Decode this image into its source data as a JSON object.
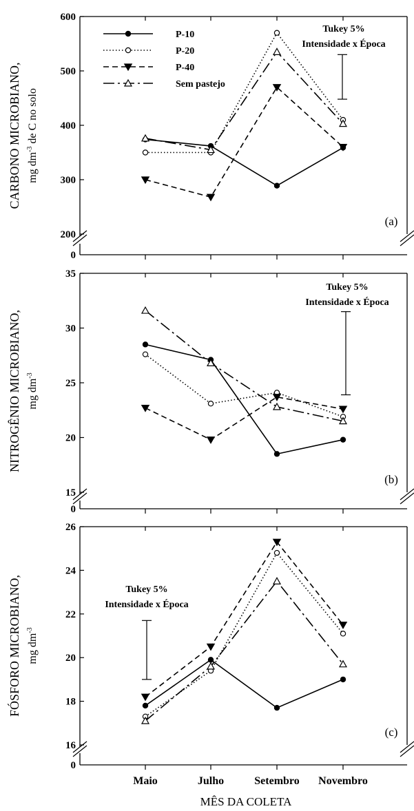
{
  "xlabel": "MÊS DA COLETA",
  "months": [
    "Maio",
    "Julho",
    "Setembro",
    "Novembro"
  ],
  "legend": [
    "P-10",
    "P-20",
    "P-40",
    "Sem pastejo"
  ],
  "tukey": {
    "line1": "Tukey 5%",
    "line2": "Intensidade x Época"
  },
  "chart_data": [
    {
      "type": "line",
      "panel": "(a)",
      "ylabel_line1": "CARBONO MICROBIANO,",
      "ylabel_line2_pre": "mg dm",
      "ylabel_line2_sup": "-3",
      "ylabel_line2_post": " de C no solo",
      "categories": [
        "Maio",
        "Julho",
        "Setembro",
        "Novembro"
      ],
      "ylim": [
        200,
        600
      ],
      "yticks": [
        200,
        300,
        400,
        500,
        600
      ],
      "axis_break": true,
      "legend_position": "top-left",
      "series": [
        {
          "name": "P-10",
          "values": [
            374,
            362,
            289,
            359
          ]
        },
        {
          "name": "P-20",
          "values": [
            350,
            350,
            570,
            410
          ]
        },
        {
          "name": "P-40",
          "values": [
            300,
            268,
            470,
            360
          ]
        },
        {
          "name": "Sem pastejo",
          "values": [
            376,
            355,
            535,
            403
          ]
        }
      ],
      "tukey_bar": [
        448,
        530
      ]
    },
    {
      "type": "line",
      "panel": "(b)",
      "ylabel_line1": "NITROGÊNIO MICROBIANO,",
      "ylabel_line2_pre": "mg dm",
      "ylabel_line2_sup": "-3",
      "ylabel_line2_post": "",
      "categories": [
        "Maio",
        "Julho",
        "Setembro",
        "Novembro"
      ],
      "ylim": [
        15,
        35
      ],
      "yticks": [
        15,
        20,
        25,
        30,
        35
      ],
      "axis_break": true,
      "series": [
        {
          "name": "P-10",
          "values": [
            28.5,
            27.1,
            18.5,
            19.8
          ]
        },
        {
          "name": "P-20",
          "values": [
            27.6,
            23.1,
            24.1,
            21.9
          ]
        },
        {
          "name": "P-40",
          "values": [
            22.7,
            19.8,
            23.7,
            22.6
          ]
        },
        {
          "name": "Sem pastejo",
          "values": [
            31.6,
            26.8,
            22.8,
            21.5
          ]
        }
      ],
      "tukey_bar": [
        23.9,
        31.5
      ]
    },
    {
      "type": "line",
      "panel": "(c)",
      "ylabel_line1": "FÓSFORO MICROBIANO,",
      "ylabel_line2_pre": "mg dm",
      "ylabel_line2_sup": "-3",
      "ylabel_line2_post": "",
      "categories": [
        "Maio",
        "Julho",
        "Setembro",
        "Novembro"
      ],
      "ylim": [
        16,
        26
      ],
      "yticks": [
        16,
        18,
        20,
        22,
        24,
        26
      ],
      "axis_break": true,
      "series": [
        {
          "name": "P-10",
          "values": [
            17.8,
            19.9,
            17.7,
            19.0
          ]
        },
        {
          "name": "P-20",
          "values": [
            17.3,
            19.4,
            24.8,
            21.1
          ]
        },
        {
          "name": "P-40",
          "values": [
            18.2,
            20.5,
            25.3,
            21.5
          ]
        },
        {
          "name": "Sem pastejo",
          "values": [
            17.1,
            19.6,
            23.5,
            19.7
          ]
        }
      ],
      "tukey_bar": [
        19.0,
        21.7
      ]
    }
  ]
}
